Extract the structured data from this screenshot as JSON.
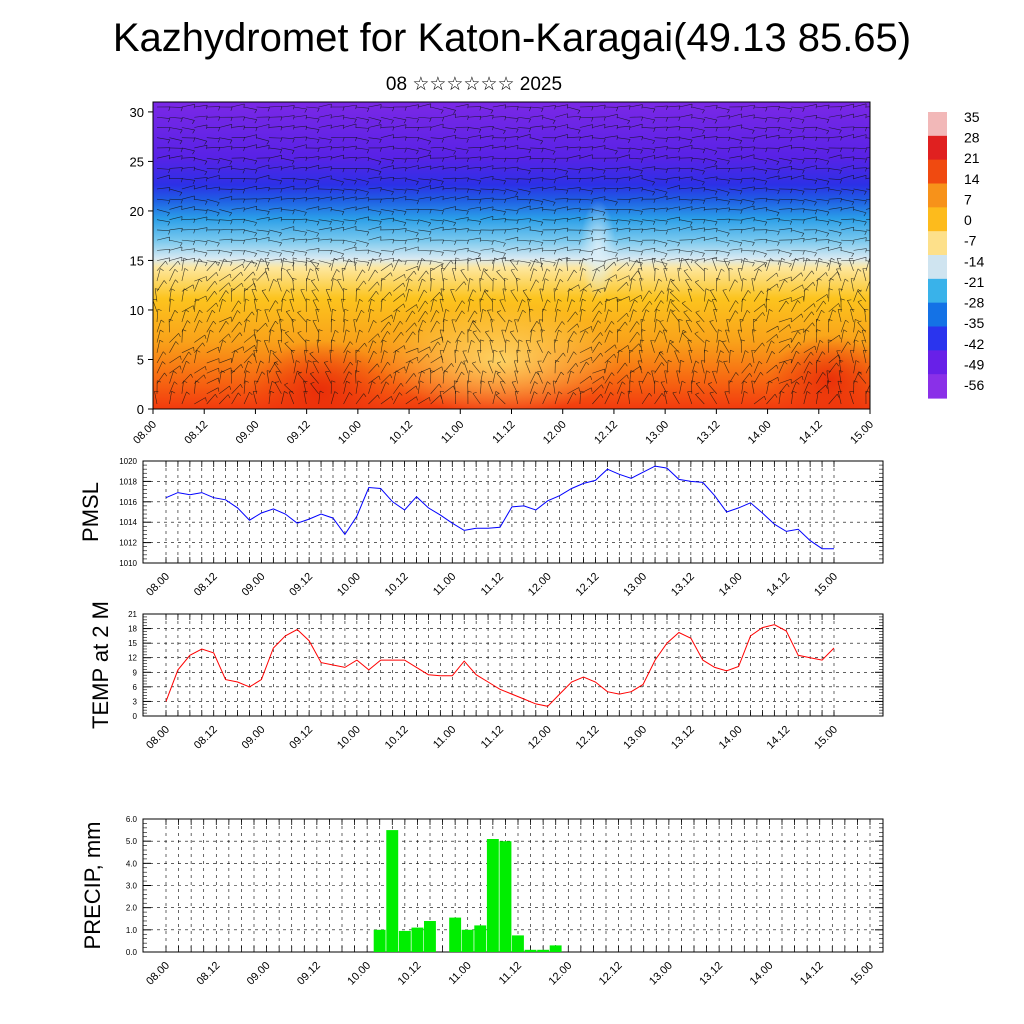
{
  "title": "Kazhydromet for Katon-Karagai(49.13 85.65)",
  "subtitle": "08 ☆☆☆☆☆☆ 2025",
  "chart_data": [
    {
      "type": "heatmap",
      "description": "Temperature cross-section with wind barbs",
      "x_tick_labels": [
        "08.00",
        "08.12",
        "09.00",
        "09.12",
        "10.00",
        "10.12",
        "11.00",
        "11.12",
        "12.00",
        "12.12",
        "13.00",
        "13.12",
        "14.00",
        "14.12",
        "15.00"
      ],
      "y_ticks": [
        0,
        5,
        10,
        15,
        20,
        25,
        30
      ],
      "ylim": [
        0,
        31
      ],
      "colorbar_labels": [
        "35",
        "28",
        "21",
        "14",
        "7",
        "0",
        "-7",
        "-14",
        "-21",
        "-28",
        "-35",
        "-42",
        "-49",
        "-56"
      ],
      "colorbar_colors": [
        "#f2b8b8",
        "#e02020",
        "#f04a10",
        "#f7921a",
        "#fdbb1c",
        "#fde08a",
        "#cfe4f0",
        "#39b2ea",
        "#1472e6",
        "#2a34ee",
        "#6820e8",
        "#8a30e8"
      ]
    },
    {
      "type": "line",
      "ylabel": "PMSL",
      "ylim": [
        1010,
        1020
      ],
      "y_ticks": [
        1010,
        1012,
        1014,
        1016,
        1018,
        1020
      ],
      "x_tick_labels": [
        "08.00",
        "08.12",
        "09.00",
        "09.12",
        "10.00",
        "10.12",
        "11.00",
        "11.12",
        "12.00",
        "12.12",
        "13.00",
        "13.12",
        "14.00",
        "14.12",
        "15.00"
      ],
      "color": "#0000ff",
      "values": [
        1016.4,
        1016.9,
        1016.7,
        1016.9,
        1016.4,
        1016.2,
        1015.4,
        1014.2,
        1014.9,
        1015.3,
        1014.8,
        1013.9,
        1014.3,
        1014.8,
        1014.4,
        1012.8,
        1014.6,
        1017.4,
        1017.3,
        1016.0,
        1015.2,
        1016.5,
        1015.4,
        1014.7,
        1013.9,
        1013.2,
        1013.4,
        1013.4,
        1013.5,
        1015.5,
        1015.6,
        1015.2,
        1016.1,
        1016.6,
        1017.3,
        1017.8,
        1018.1,
        1019.2,
        1018.7,
        1018.3,
        1018.9,
        1019.5,
        1019.3,
        1018.2,
        1018.0,
        1017.9,
        1016.6,
        1015.0,
        1015.4,
        1015.9,
        1014.9,
        1013.8,
        1013.1,
        1013.3,
        1012.2,
        1011.4,
        1011.4
      ]
    },
    {
      "type": "line",
      "ylabel": "TEMP at 2 M",
      "ylim": [
        0,
        21
      ],
      "y_ticks": [
        0,
        3,
        6,
        9,
        12,
        15,
        18,
        21
      ],
      "x_tick_labels": [
        "08.00",
        "08.12",
        "09.00",
        "09.12",
        "10.00",
        "10.12",
        "11.00",
        "11.12",
        "12.00",
        "12.12",
        "13.00",
        "13.12",
        "14.00",
        "14.12",
        "15.00"
      ],
      "color": "#ff0000",
      "values": [
        3.0,
        9.5,
        12.5,
        13.8,
        13.0,
        7.5,
        7.0,
        6.0,
        7.5,
        14.0,
        16.5,
        17.8,
        15.5,
        11.0,
        10.5,
        10.0,
        11.5,
        9.5,
        11.5,
        11.5,
        11.5,
        10.0,
        8.5,
        8.3,
        8.3,
        11.3,
        8.5,
        7.0,
        5.5,
        4.5,
        3.5,
        2.5,
        2.0,
        4.5,
        7.0,
        8.0,
        7.0,
        5.0,
        4.5,
        5.0,
        6.5,
        11.5,
        15.0,
        17.2,
        16.0,
        11.5,
        10.0,
        9.3,
        10.2,
        16.5,
        18.2,
        18.8,
        17.5,
        12.5,
        12.0,
        11.5,
        14.0
      ]
    },
    {
      "type": "bar",
      "ylabel": "PRECIP, mm",
      "ylim": [
        0,
        6
      ],
      "y_tick_labels": [
        "0.0",
        "1.0",
        "2.0",
        "3.0",
        "4.0",
        "5.0",
        "6.0"
      ],
      "x_tick_labels": [
        "08.00",
        "08.12",
        "09.00",
        "09.12",
        "10.00",
        "10.12",
        "11.00",
        "11.12",
        "12.00",
        "12.12",
        "13.00",
        "13.12",
        "14.00",
        "14.12",
        "15.00"
      ],
      "color": "#00ee00",
      "values": [
        0,
        0,
        0,
        0,
        0,
        0,
        0,
        0,
        0,
        0,
        0,
        0,
        0,
        0,
        0,
        0,
        0,
        1.0,
        5.5,
        0.95,
        1.1,
        1.4,
        0,
        1.55,
        1.0,
        1.2,
        5.1,
        5.0,
        0.75,
        0.1,
        0.1,
        0.3,
        0,
        0,
        0,
        0,
        0,
        0,
        0,
        0,
        0,
        0,
        0,
        0,
        0,
        0,
        0,
        0,
        0,
        0,
        0,
        0,
        0,
        0,
        0,
        0,
        0
      ]
    }
  ]
}
